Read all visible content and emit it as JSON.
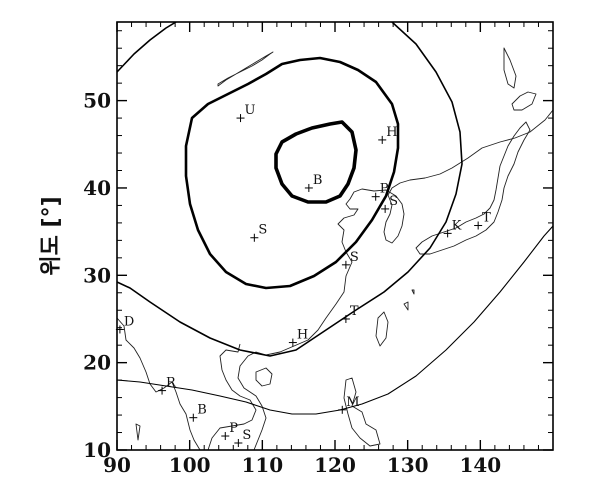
{
  "map": {
    "xaxis": {
      "range": [
        90,
        150
      ],
      "ticks": [
        {
          "value": 90,
          "label": "90"
        },
        {
          "value": 100,
          "label": "100"
        },
        {
          "value": 110,
          "label": "110"
        },
        {
          "value": 120,
          "label": "120"
        },
        {
          "value": 130,
          "label": "130"
        },
        {
          "value": 140,
          "label": "140"
        }
      ]
    },
    "yaxis": {
      "range": [
        10,
        59
      ],
      "title": "위도 [°]",
      "ticks": [
        {
          "value": 10,
          "label": "10"
        },
        {
          "value": 20,
          "label": "20"
        },
        {
          "value": 30,
          "label": "30"
        },
        {
          "value": 40,
          "label": "40"
        },
        {
          "value": 50,
          "label": "50"
        }
      ]
    },
    "contours": [
      {
        "level": "outer",
        "weight": "thin"
      },
      {
        "level": "middle",
        "weight": "medium"
      },
      {
        "level": "inner",
        "weight": "thick"
      },
      {
        "level": "south",
        "weight": "thin"
      }
    ],
    "stations": [
      {
        "label": "U",
        "lon": 107.0,
        "lat": 48.0
      },
      {
        "label": "H",
        "lon": 126.5,
        "lat": 45.5
      },
      {
        "label": "B",
        "lon": 116.4,
        "lat": 40.0
      },
      {
        "label": "P",
        "lon": 125.6,
        "lat": 39.0
      },
      {
        "label": "S",
        "lon": 126.9,
        "lat": 37.6
      },
      {
        "label": "S",
        "lon": 108.9,
        "lat": 34.3
      },
      {
        "label": "K",
        "lon": 135.5,
        "lat": 34.8
      },
      {
        "label": "T",
        "lon": 139.7,
        "lat": 35.7
      },
      {
        "label": "S",
        "lon": 121.5,
        "lat": 31.2
      },
      {
        "label": "T",
        "lon": 121.5,
        "lat": 25.0
      },
      {
        "label": "H",
        "lon": 114.2,
        "lat": 22.3
      },
      {
        "label": "D",
        "lon": 90.4,
        "lat": 23.8
      },
      {
        "label": "R",
        "lon": 96.2,
        "lat": 16.8
      },
      {
        "label": "B",
        "lon": 100.5,
        "lat": 13.7
      },
      {
        "label": "P",
        "lon": 104.9,
        "lat": 11.6
      },
      {
        "label": "S",
        "lon": 106.7,
        "lat": 10.8
      },
      {
        "label": "M",
        "lon": 121.0,
        "lat": 14.6
      }
    ]
  }
}
